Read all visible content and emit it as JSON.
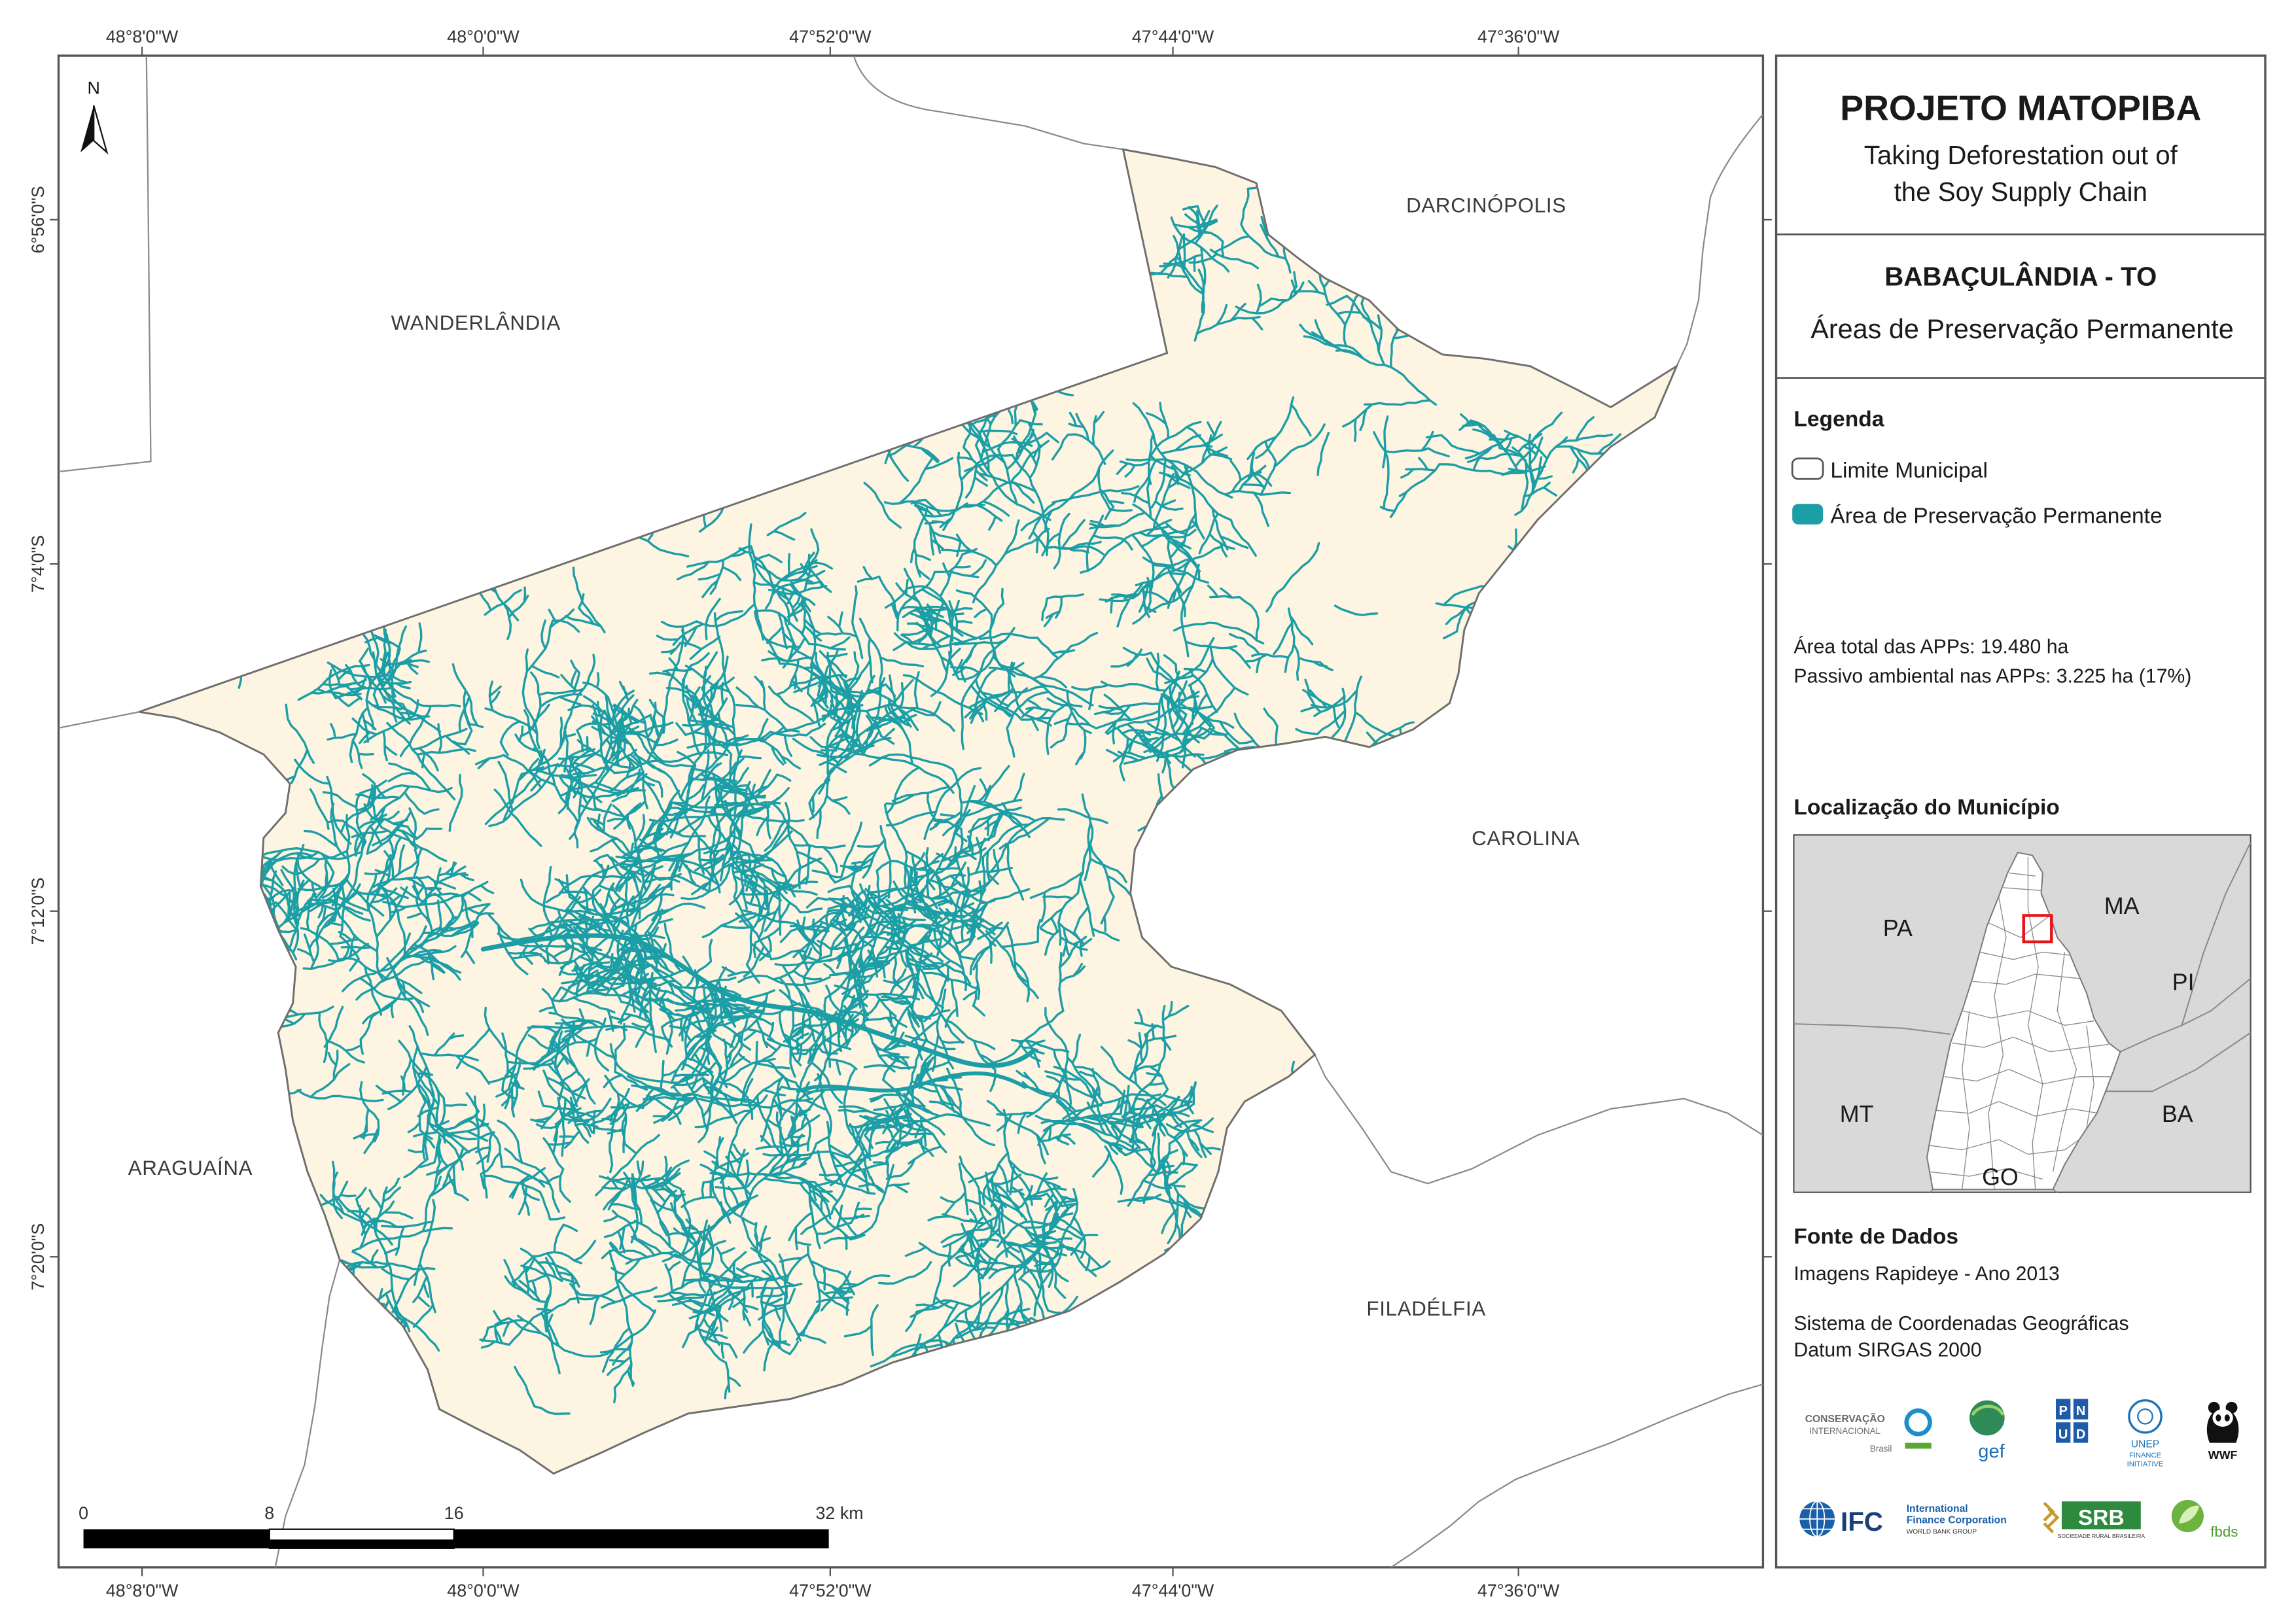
{
  "colors": {
    "app_area": "#1c9ea6",
    "municipality_fill": "#fdf4e1",
    "boundary": "#6e6e6e",
    "inset_background": "#d9d9d9",
    "locator_box": "#e3161c"
  },
  "grid": {
    "longitudes": [
      "48°8'0\"W",
      "48°0'0\"W",
      "47°52'0\"W",
      "47°44'0\"W",
      "47°36'0\"W"
    ],
    "latitudes": [
      "6°56'0\"S",
      "7°4'0\"S",
      "7°12'0\"S",
      "7°20'0\"S"
    ]
  },
  "map": {
    "north": "N",
    "places": {
      "wanderlandia": "WANDERLÂNDIA",
      "darcinopolis": "DARCINÓPOLIS",
      "carolina": "CAROLINA",
      "araguaina": "ARAGUAÍNA",
      "filadelfia": "FILADÉLFIA"
    },
    "scale_bar": {
      "labels": [
        "0",
        "8",
        "16",
        "32 km"
      ]
    }
  },
  "panel": {
    "title": "PROJETO MATOPIBA",
    "subtitle_lines": [
      "Taking Deforestation out of",
      "the Soy Supply Chain"
    ],
    "municipality": "BABAÇULÂNDIA - TO",
    "theme": "Áreas de Preservação Permanente",
    "legend": {
      "title": "Legenda",
      "items": [
        {
          "label": "Limite Municipal"
        },
        {
          "label": "Área de Preservação Permanente"
        }
      ]
    },
    "stats": [
      {
        "label": "Área total das APPs:",
        "value": "19.480 ha"
      },
      {
        "label": "Passivo ambiental nas APPs:",
        "value": "3.225 ha (17%)"
      }
    ],
    "location": {
      "title": "Localização do Município",
      "states": {
        "pa": "PA",
        "ma": "MA",
        "pi": "PI",
        "mt": "MT",
        "ba": "BA",
        "go": "GO"
      }
    },
    "sources": {
      "title": "Fonte de Dados",
      "imagery": "Imagens Rapideye - Ano 2013",
      "crs_lines": [
        "Sistema de Coordenadas Geográficas",
        "Datum SIRGAS 2000"
      ]
    }
  },
  "logos": {
    "ci": {
      "line1": "CONSERVAÇÃO",
      "line2": "INTERNACIONAL",
      "line3": "Brasil"
    },
    "gef": "gef",
    "pnud": [
      "P",
      "N",
      "U",
      "D"
    ],
    "unep": {
      "name": "UNEP",
      "line2": "FINANCE",
      "line3": "INITIATIVE"
    },
    "wwf": "WWF",
    "ifc": {
      "name": "IFC",
      "line1": "International",
      "line2": "Finance Corporation",
      "line3": "WORLD BANK GROUP"
    },
    "srb": {
      "name": "SRB",
      "line": "SOCIEDADE RURAL BRASILEIRA"
    },
    "fbds": "fbds"
  }
}
